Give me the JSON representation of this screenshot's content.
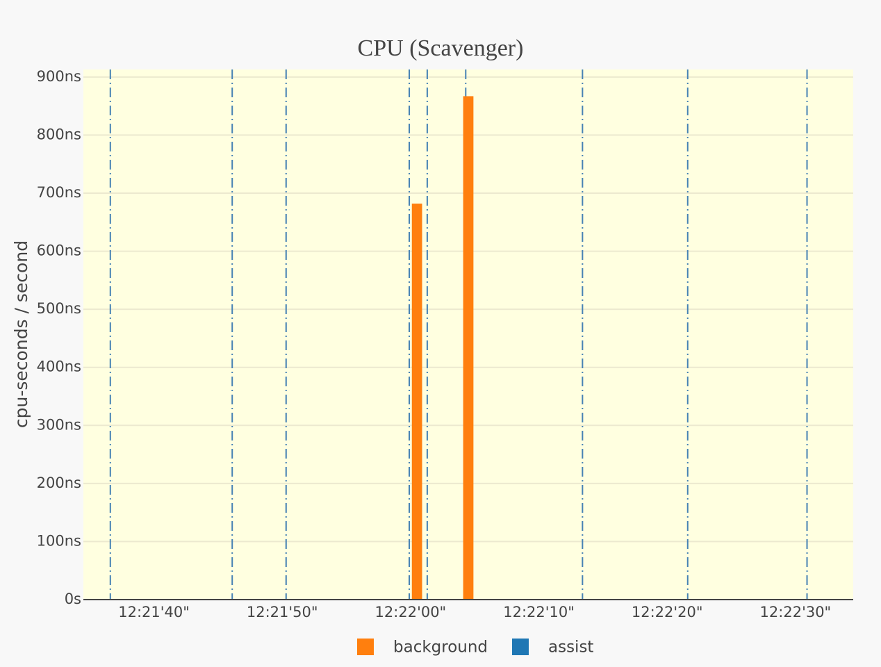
{
  "chart_data": {
    "type": "bar",
    "title": "CPU (Scavenger)",
    "y_label": "cpu-seconds / second",
    "series": [
      {
        "name": "background",
        "color": "#ff7f0e",
        "x": [
          "12:22:00.5",
          "12:22:04.5"
        ],
        "values": [
          682,
          867
        ]
      },
      {
        "name": "assist",
        "color": "#1f77b4",
        "x": [],
        "values": []
      }
    ],
    "events": {
      "color": "#4682b4",
      "x": [
        "12:21:36.6",
        "12:21:46.1",
        "12:21:50.3",
        "12:21:59.9",
        "12:22:01.3",
        "12:22:04.3",
        "12:22:13.4",
        "12:22:21.6",
        "12:22:30.9"
      ]
    },
    "xlim": [
      "12:21:34.5",
      "12:22:34.5"
    ],
    "xticks": [
      {
        "value": "12:21:40",
        "label": "12:21'40\""
      },
      {
        "value": "12:21:50",
        "label": "12:21'50\""
      },
      {
        "value": "12:22:00",
        "label": "12:22'00\""
      },
      {
        "value": "12:22:10",
        "label": "12:22'10\""
      },
      {
        "value": "12:22:20",
        "label": "12:22'20\""
      },
      {
        "value": "12:22:30",
        "label": "12:22'30\""
      }
    ],
    "ylim": [
      0,
      913
    ],
    "yticks": [
      {
        "value": 0,
        "label": "0s"
      },
      {
        "value": 100,
        "label": "100ns"
      },
      {
        "value": 200,
        "label": "200ns"
      },
      {
        "value": 300,
        "label": "300ns"
      },
      {
        "value": 400,
        "label": "400ns"
      },
      {
        "value": 500,
        "label": "500ns"
      },
      {
        "value": 600,
        "label": "600ns"
      },
      {
        "value": 700,
        "label": "700ns"
      },
      {
        "value": 800,
        "label": "800ns"
      },
      {
        "value": 900,
        "label": "900ns"
      }
    ],
    "grid": true
  }
}
